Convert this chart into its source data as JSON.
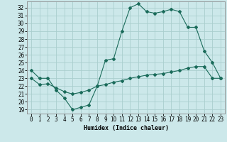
{
  "title": "",
  "xlabel": "Humidex (Indice chaleur)",
  "background_color": "#cce8ea",
  "grid_color": "#aacece",
  "line_color": "#1a6b5a",
  "x_ticks": [
    0,
    1,
    2,
    3,
    4,
    5,
    6,
    7,
    8,
    9,
    10,
    11,
    12,
    13,
    14,
    15,
    16,
    17,
    18,
    19,
    20,
    21,
    22,
    23
  ],
  "y_ticks": [
    19,
    20,
    21,
    22,
    23,
    24,
    25,
    26,
    27,
    28,
    29,
    30,
    31,
    32
  ],
  "ylim": [
    18.5,
    32.8
  ],
  "xlim": [
    -0.5,
    23.5
  ],
  "line1_x": [
    0,
    1,
    2,
    3,
    4,
    5,
    6,
    7,
    8,
    9,
    10,
    11,
    12,
    13,
    14,
    15,
    16,
    17,
    18,
    19,
    20,
    21,
    22,
    23
  ],
  "line1_y": [
    24.0,
    23.0,
    23.0,
    21.5,
    20.5,
    19.0,
    19.3,
    19.6,
    22.0,
    25.3,
    25.5,
    29.0,
    32.0,
    32.5,
    31.5,
    31.3,
    31.5,
    31.8,
    31.5,
    29.5,
    29.5,
    26.5,
    25.0,
    23.0
  ],
  "line2_x": [
    0,
    1,
    2,
    3,
    4,
    5,
    6,
    7,
    8,
    9,
    10,
    11,
    12,
    13,
    14,
    15,
    16,
    17,
    18,
    19,
    20,
    21,
    22,
    23
  ],
  "line2_y": [
    23.0,
    22.2,
    22.3,
    21.8,
    21.3,
    21.0,
    21.2,
    21.5,
    22.0,
    22.2,
    22.5,
    22.7,
    23.0,
    23.2,
    23.4,
    23.5,
    23.6,
    23.8,
    24.0,
    24.3,
    24.5,
    24.5,
    23.0,
    23.0
  ]
}
